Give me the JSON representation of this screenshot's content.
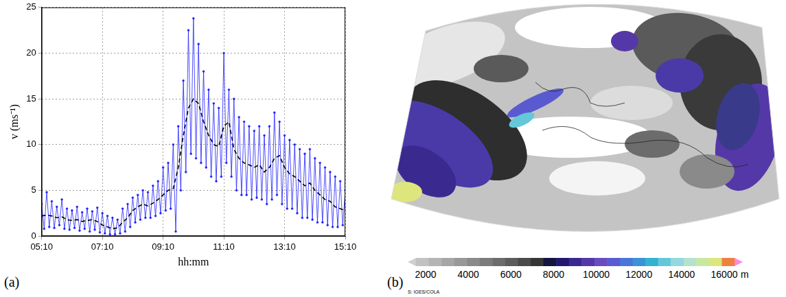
{
  "chart_data": {
    "type": "line",
    "panel_label": "(a)",
    "x_label": "hh:mm",
    "y_label": "v (ms⁻¹)",
    "xlim": [
      310,
      910
    ],
    "xticks": [
      {
        "value": 310,
        "label": "05:10"
      },
      {
        "value": 430,
        "label": "07:10"
      },
      {
        "value": 550,
        "label": "09:10"
      },
      {
        "value": 670,
        "label": "11:10"
      },
      {
        "value": 790,
        "label": "13:10"
      },
      {
        "value": 910,
        "label": "15:10"
      }
    ],
    "ylim": [
      0,
      25
    ],
    "yticks": [
      0,
      5,
      10,
      15,
      20,
      25
    ],
    "grid": true,
    "series": [
      {
        "color": "#1f1fff",
        "line_style": "solid",
        "marker": "dot",
        "x": [
          310,
          315,
          320,
          325,
          330,
          335,
          340,
          345,
          350,
          355,
          360,
          365,
          370,
          375,
          380,
          385,
          390,
          395,
          400,
          405,
          410,
          415,
          420,
          425,
          430,
          435,
          440,
          445,
          450,
          455,
          460,
          465,
          470,
          475,
          480,
          485,
          490,
          495,
          500,
          505,
          510,
          515,
          520,
          525,
          530,
          535,
          540,
          545,
          550,
          555,
          560,
          565,
          570,
          575,
          580,
          585,
          590,
          595,
          600,
          605,
          610,
          615,
          620,
          625,
          630,
          635,
          640,
          645,
          650,
          655,
          660,
          665,
          670,
          675,
          680,
          685,
          690,
          695,
          700,
          705,
          710,
          715,
          720,
          725,
          730,
          735,
          740,
          745,
          750,
          755,
          760,
          765,
          770,
          775,
          780,
          785,
          790,
          795,
          800,
          805,
          810,
          815,
          820,
          825,
          830,
          835,
          840,
          845,
          850,
          855,
          860,
          865,
          870,
          875,
          880,
          885,
          890,
          895,
          900,
          905,
          910
        ],
        "values": [
          3.5,
          0.8,
          4.8,
          1.0,
          3.8,
          0.9,
          3.2,
          1.2,
          4.0,
          0.8,
          3.0,
          0.7,
          2.8,
          0.9,
          3.2,
          0.6,
          2.6,
          0.8,
          3.0,
          0.5,
          2.7,
          0.7,
          3.1,
          0.4,
          2.5,
          0.3,
          2.2,
          0.2,
          2.0,
          0.2,
          1.8,
          0.3,
          3.0,
          0.5,
          3.5,
          1.0,
          4.2,
          1.5,
          4.5,
          1.8,
          5.0,
          2.0,
          4.8,
          2.0,
          5.5,
          2.2,
          6.0,
          2.5,
          7.5,
          2.8,
          8.0,
          3.0,
          10.0,
          0.5,
          12.0,
          5.0,
          17.0,
          7.0,
          22.5,
          9.0,
          23.8,
          8.5,
          21.0,
          8.0,
          18.0,
          7.5,
          16.0,
          6.5,
          14.5,
          6.0,
          14.0,
          6.5,
          20.0,
          8.0,
          16.0,
          6.5,
          15.0,
          5.0,
          13.0,
          4.5,
          12.5,
          4.5,
          12.0,
          4.0,
          11.5,
          4.2,
          12.0,
          4.0,
          11.0,
          3.5,
          12.0,
          4.0,
          13.5,
          4.5,
          12.5,
          3.5,
          11.0,
          3.0,
          10.5,
          3.0,
          10.0,
          2.5,
          9.5,
          2.0,
          9.0,
          2.0,
          9.5,
          1.8,
          8.5,
          1.5,
          8.0,
          1.5,
          7.5,
          1.2,
          7.0,
          1.0,
          6.5,
          1.0,
          6.0,
          1.2,
          5.0
        ]
      },
      {
        "color": "#000000",
        "line_style": "dashed",
        "marker": "none",
        "x": [
          310,
          320,
          330,
          340,
          350,
          360,
          370,
          380,
          390,
          400,
          410,
          420,
          430,
          440,
          450,
          460,
          470,
          480,
          490,
          500,
          510,
          520,
          530,
          540,
          550,
          560,
          570,
          580,
          590,
          600,
          610,
          620,
          630,
          640,
          650,
          660,
          670,
          680,
          690,
          700,
          710,
          720,
          730,
          740,
          750,
          760,
          770,
          780,
          790,
          800,
          810,
          820,
          830,
          840,
          850,
          860,
          870,
          880,
          890,
          900,
          910
        ],
        "values": [
          2.2,
          2.3,
          2.2,
          2.0,
          2.1,
          1.8,
          1.7,
          1.8,
          1.6,
          1.7,
          1.8,
          1.6,
          1.2,
          1.0,
          0.8,
          0.9,
          1.5,
          2.0,
          2.8,
          3.2,
          3.5,
          3.3,
          3.6,
          4.0,
          4.5,
          5.0,
          5.2,
          7.5,
          11.0,
          14.0,
          15.0,
          14.5,
          12.5,
          11.0,
          10.0,
          9.8,
          12.0,
          12.5,
          9.5,
          8.5,
          8.0,
          7.8,
          7.5,
          7.8,
          7.0,
          7.5,
          8.5,
          8.8,
          7.5,
          6.8,
          6.5,
          6.0,
          5.5,
          5.8,
          5.0,
          4.5,
          4.0,
          3.8,
          3.2,
          3.0,
          2.8
        ]
      }
    ]
  },
  "map": {
    "panel_label": "(b)",
    "source": "S: IGES/COLA",
    "colorbar": {
      "range": [
        2000,
        16000
      ],
      "ticks": [
        2000,
        4000,
        6000,
        8000,
        10000,
        12000,
        14000,
        16000
      ],
      "unit": "m",
      "colors": [
        "#cfcfcf",
        "#c2c2c2",
        "#b4b4b4",
        "#a6a6a6",
        "#989898",
        "#8a8a8a",
        "#7b7b7b",
        "#6c6c6c",
        "#5c5c5c",
        "#4a4a4a",
        "#363636",
        "#14143c",
        "#22186e",
        "#3a2a90",
        "#5538a8",
        "#6a4cc0",
        "#5c5cd2",
        "#4a76d8",
        "#3a92d8",
        "#34b2d0",
        "#64c8d8",
        "#94d8e0",
        "#b4e2cc",
        "#c8e8a0",
        "#dce67c",
        "#f08040",
        "#ff88d8"
      ]
    }
  }
}
